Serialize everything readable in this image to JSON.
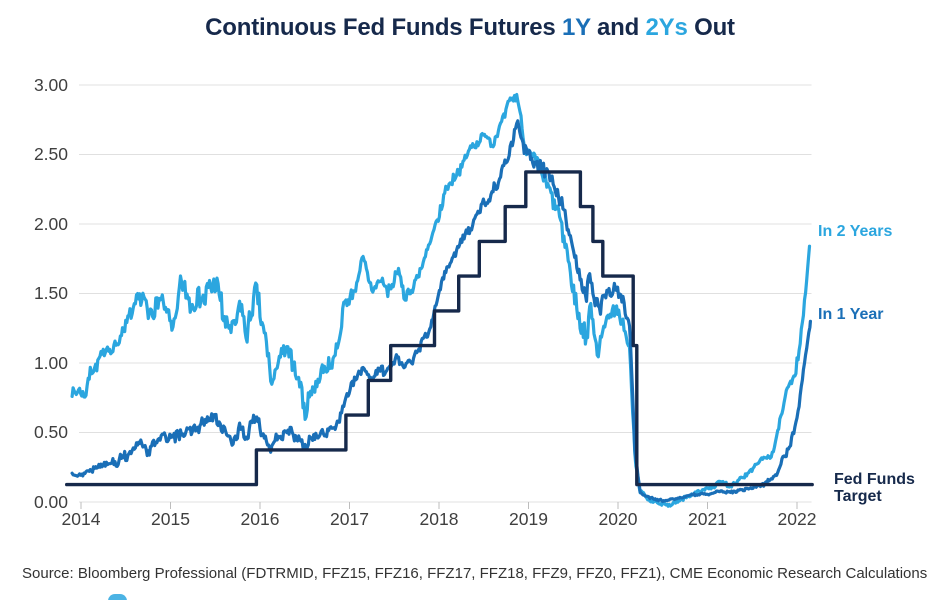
{
  "title": {
    "seg1": "Continuous Fed Funds Futures ",
    "seg2": "1Y",
    "seg3": " and ",
    "seg4": "2Ys",
    "seg5": " Out"
  },
  "labels": {
    "in2y": "In 2 Years",
    "in1y": "In 1 Year",
    "fft_line1": "Fed Funds",
    "fft_line2": "Target"
  },
  "source": "Source: Bloomberg Professional (FDTRMID, FFZ15, FFZ16, FFZ17, FFZ18, FFZ9, FFZ0, FFZ1), CME Economic Research Calculations",
  "colors": {
    "navy": "#16294B",
    "blue_1y": "#1A6FB7",
    "blue_2y": "#2BA6DF",
    "grid": "#E0E0E0",
    "tick": "#BDBDBD",
    "axis_text": "#3F3F3F",
    "source_text": "#333333"
  },
  "chart_data": {
    "type": "line",
    "title": "Continuous Fed Funds Futures 1Y and 2Ys Out",
    "xlabel": "",
    "ylabel": "",
    "grid": "horizontal",
    "legend_position": "right-of-lines",
    "xlim": [
      2013.84,
      2022.2
    ],
    "ylim": [
      0,
      3.0
    ],
    "x_ticks": [
      {
        "v": 2014,
        "label": "2014"
      },
      {
        "v": 2015,
        "label": "2015"
      },
      {
        "v": 2016,
        "label": "2016"
      },
      {
        "v": 2017,
        "label": "2017"
      },
      {
        "v": 2018,
        "label": "2018"
      },
      {
        "v": 2019,
        "label": "2019"
      },
      {
        "v": 2020,
        "label": "2020"
      },
      {
        "v": 2021,
        "label": "2021"
      },
      {
        "v": 2022,
        "label": "2022"
      }
    ],
    "y_ticks": [
      {
        "v": 0.0,
        "label": "0.00"
      },
      {
        "v": 0.5,
        "label": "0.50"
      },
      {
        "v": 1.0,
        "label": "1.00"
      },
      {
        "v": 1.5,
        "label": "1.50"
      },
      {
        "v": 2.0,
        "label": "2.00"
      },
      {
        "v": 2.5,
        "label": "2.50"
      },
      {
        "v": 3.0,
        "label": "3.00"
      }
    ],
    "series": [
      {
        "name": "In 2 Years",
        "color_key": "blue_2y",
        "kind": "noisy-line",
        "points": [
          [
            2013.9,
            0.82
          ],
          [
            2014.0,
            0.8
          ],
          [
            2014.05,
            0.74
          ],
          [
            2014.1,
            0.95
          ],
          [
            2014.2,
            1.02
          ],
          [
            2014.3,
            1.1
          ],
          [
            2014.4,
            1.13
          ],
          [
            2014.5,
            1.25
          ],
          [
            2014.6,
            1.42
          ],
          [
            2014.7,
            1.48
          ],
          [
            2014.75,
            1.32
          ],
          [
            2014.85,
            1.45
          ],
          [
            2014.95,
            1.38
          ],
          [
            2015.05,
            1.3
          ],
          [
            2015.12,
            1.58
          ],
          [
            2015.2,
            1.42
          ],
          [
            2015.3,
            1.52
          ],
          [
            2015.4,
            1.48
          ],
          [
            2015.5,
            1.57
          ],
          [
            2015.6,
            1.32
          ],
          [
            2015.7,
            1.22
          ],
          [
            2015.78,
            1.38
          ],
          [
            2015.85,
            1.18
          ],
          [
            2015.95,
            1.48
          ],
          [
            2016.05,
            1.22
          ],
          [
            2016.12,
            0.88
          ],
          [
            2016.22,
            1.0
          ],
          [
            2016.3,
            1.05
          ],
          [
            2016.4,
            0.92
          ],
          [
            2016.5,
            0.68
          ],
          [
            2016.6,
            0.82
          ],
          [
            2016.7,
            0.92
          ],
          [
            2016.8,
            0.98
          ],
          [
            2016.88,
            1.15
          ],
          [
            2016.95,
            1.42
          ],
          [
            2017.05,
            1.5
          ],
          [
            2017.15,
            1.72
          ],
          [
            2017.25,
            1.52
          ],
          [
            2017.35,
            1.62
          ],
          [
            2017.45,
            1.52
          ],
          [
            2017.55,
            1.65
          ],
          [
            2017.62,
            1.48
          ],
          [
            2017.7,
            1.55
          ],
          [
            2017.8,
            1.7
          ],
          [
            2017.9,
            1.85
          ],
          [
            2018.0,
            2.05
          ],
          [
            2018.1,
            2.28
          ],
          [
            2018.2,
            2.38
          ],
          [
            2018.3,
            2.48
          ],
          [
            2018.4,
            2.58
          ],
          [
            2018.5,
            2.66
          ],
          [
            2018.58,
            2.58
          ],
          [
            2018.7,
            2.72
          ],
          [
            2018.8,
            2.88
          ],
          [
            2018.87,
            2.94
          ],
          [
            2018.95,
            2.6
          ],
          [
            2019.05,
            2.48
          ],
          [
            2019.15,
            2.38
          ],
          [
            2019.25,
            2.2
          ],
          [
            2019.35,
            2.0
          ],
          [
            2019.42,
            1.85
          ],
          [
            2019.5,
            1.48
          ],
          [
            2019.58,
            1.3
          ],
          [
            2019.65,
            1.18
          ],
          [
            2019.7,
            1.42
          ],
          [
            2019.78,
            1.1
          ],
          [
            2019.85,
            1.32
          ],
          [
            2019.95,
            1.35
          ],
          [
            2020.05,
            1.28
          ],
          [
            2020.13,
            1.1
          ],
          [
            2020.19,
            0.3
          ],
          [
            2020.25,
            0.08
          ],
          [
            2020.35,
            0.02
          ],
          [
            2020.45,
            -0.01
          ],
          [
            2020.55,
            -0.02
          ],
          [
            2020.65,
            0.0
          ],
          [
            2020.75,
            0.03
          ],
          [
            2020.85,
            0.06
          ],
          [
            2020.95,
            0.09
          ],
          [
            2021.05,
            0.11
          ],
          [
            2021.15,
            0.14
          ],
          [
            2021.25,
            0.12
          ],
          [
            2021.35,
            0.16
          ],
          [
            2021.45,
            0.2
          ],
          [
            2021.55,
            0.26
          ],
          [
            2021.62,
            0.34
          ],
          [
            2021.7,
            0.3
          ],
          [
            2021.78,
            0.48
          ],
          [
            2021.85,
            0.72
          ],
          [
            2021.9,
            0.85
          ],
          [
            2021.97,
            0.92
          ],
          [
            2022.02,
            1.05
          ],
          [
            2022.07,
            1.35
          ],
          [
            2022.1,
            1.55
          ],
          [
            2022.14,
            1.84
          ]
        ],
        "vol": [
          [
            2013.9,
            0.05
          ],
          [
            2014.5,
            0.07
          ],
          [
            2015.0,
            0.1
          ],
          [
            2015.8,
            0.11
          ],
          [
            2016.3,
            0.09
          ],
          [
            2016.8,
            0.07
          ],
          [
            2017.5,
            0.06
          ],
          [
            2018.3,
            0.045
          ],
          [
            2018.9,
            0.05
          ],
          [
            2019.3,
            0.09
          ],
          [
            2019.8,
            0.11
          ],
          [
            2020.05,
            0.06
          ],
          [
            2020.3,
            0.02
          ],
          [
            2020.7,
            0.012
          ],
          [
            2021.2,
            0.015
          ],
          [
            2021.6,
            0.03
          ],
          [
            2021.9,
            0.045
          ],
          [
            2022.14,
            0.035
          ]
        ]
      },
      {
        "name": "In 1 Year",
        "color_key": "blue_1y",
        "kind": "noisy-line",
        "points": [
          [
            2013.9,
            0.21
          ],
          [
            2014.0,
            0.2
          ],
          [
            2014.1,
            0.24
          ],
          [
            2014.2,
            0.26
          ],
          [
            2014.3,
            0.3
          ],
          [
            2014.4,
            0.29
          ],
          [
            2014.5,
            0.33
          ],
          [
            2014.6,
            0.38
          ],
          [
            2014.7,
            0.43
          ],
          [
            2014.75,
            0.37
          ],
          [
            2014.85,
            0.46
          ],
          [
            2014.95,
            0.48
          ],
          [
            2015.05,
            0.44
          ],
          [
            2015.12,
            0.53
          ],
          [
            2015.2,
            0.5
          ],
          [
            2015.3,
            0.54
          ],
          [
            2015.4,
            0.57
          ],
          [
            2015.5,
            0.6
          ],
          [
            2015.6,
            0.5
          ],
          [
            2015.7,
            0.44
          ],
          [
            2015.78,
            0.52
          ],
          [
            2015.85,
            0.46
          ],
          [
            2015.95,
            0.6
          ],
          [
            2016.05,
            0.5
          ],
          [
            2016.12,
            0.4
          ],
          [
            2016.22,
            0.47
          ],
          [
            2016.3,
            0.5
          ],
          [
            2016.4,
            0.46
          ],
          [
            2016.5,
            0.4
          ],
          [
            2016.6,
            0.48
          ],
          [
            2016.7,
            0.5
          ],
          [
            2016.8,
            0.53
          ],
          [
            2016.88,
            0.6
          ],
          [
            2016.95,
            0.75
          ],
          [
            2017.05,
            0.85
          ],
          [
            2017.15,
            0.97
          ],
          [
            2017.25,
            0.9
          ],
          [
            2017.35,
            0.95
          ],
          [
            2017.45,
            0.97
          ],
          [
            2017.55,
            1.04
          ],
          [
            2017.62,
            0.98
          ],
          [
            2017.7,
            1.03
          ],
          [
            2017.8,
            1.12
          ],
          [
            2017.9,
            1.25
          ],
          [
            2018.0,
            1.52
          ],
          [
            2018.1,
            1.72
          ],
          [
            2018.2,
            1.82
          ],
          [
            2018.3,
            1.92
          ],
          [
            2018.4,
            2.02
          ],
          [
            2018.5,
            2.15
          ],
          [
            2018.58,
            2.2
          ],
          [
            2018.7,
            2.38
          ],
          [
            2018.8,
            2.55
          ],
          [
            2018.87,
            2.76
          ],
          [
            2018.95,
            2.52
          ],
          [
            2019.05,
            2.45
          ],
          [
            2019.15,
            2.4
          ],
          [
            2019.25,
            2.32
          ],
          [
            2019.35,
            2.2
          ],
          [
            2019.42,
            2.05
          ],
          [
            2019.5,
            1.8
          ],
          [
            2019.58,
            1.6
          ],
          [
            2019.65,
            1.5
          ],
          [
            2019.7,
            1.6
          ],
          [
            2019.78,
            1.4
          ],
          [
            2019.85,
            1.5
          ],
          [
            2019.95,
            1.52
          ],
          [
            2020.05,
            1.45
          ],
          [
            2020.13,
            1.28
          ],
          [
            2020.19,
            0.35
          ],
          [
            2020.25,
            0.06
          ],
          [
            2020.35,
            0.03
          ],
          [
            2020.45,
            0.01
          ],
          [
            2020.55,
            0.01
          ],
          [
            2020.65,
            0.02
          ],
          [
            2020.75,
            0.04
          ],
          [
            2020.85,
            0.05
          ],
          [
            2020.95,
            0.06
          ],
          [
            2021.05,
            0.06
          ],
          [
            2021.15,
            0.08
          ],
          [
            2021.25,
            0.07
          ],
          [
            2021.35,
            0.08
          ],
          [
            2021.45,
            0.09
          ],
          [
            2021.55,
            0.11
          ],
          [
            2021.62,
            0.13
          ],
          [
            2021.7,
            0.15
          ],
          [
            2021.78,
            0.22
          ],
          [
            2021.85,
            0.3
          ],
          [
            2021.9,
            0.38
          ],
          [
            2021.97,
            0.5
          ],
          [
            2022.02,
            0.68
          ],
          [
            2022.07,
            0.92
          ],
          [
            2022.1,
            1.08
          ],
          [
            2022.15,
            1.3
          ]
        ],
        "vol": [
          [
            2013.9,
            0.025
          ],
          [
            2014.5,
            0.04
          ],
          [
            2015.0,
            0.05
          ],
          [
            2016.0,
            0.05
          ],
          [
            2017.0,
            0.04
          ],
          [
            2018.0,
            0.035
          ],
          [
            2018.9,
            0.045
          ],
          [
            2019.3,
            0.07
          ],
          [
            2019.8,
            0.09
          ],
          [
            2020.05,
            0.05
          ],
          [
            2020.3,
            0.008
          ],
          [
            2021.0,
            0.008
          ],
          [
            2021.5,
            0.015
          ],
          [
            2021.9,
            0.03
          ],
          [
            2022.15,
            0.03
          ]
        ]
      },
      {
        "name": "Fed Funds Target",
        "color_key": "navy",
        "kind": "step",
        "points": [
          [
            2013.84,
            0.125
          ],
          [
            2015.96,
            0.375
          ],
          [
            2016.96,
            0.625
          ],
          [
            2017.21,
            0.875
          ],
          [
            2017.46,
            1.125
          ],
          [
            2017.95,
            1.375
          ],
          [
            2018.22,
            1.625
          ],
          [
            2018.45,
            1.875
          ],
          [
            2018.74,
            2.125
          ],
          [
            2018.97,
            2.375
          ],
          [
            2019.58,
            2.125
          ],
          [
            2019.72,
            1.875
          ],
          [
            2019.83,
            1.625
          ],
          [
            2020.17,
            1.125
          ],
          [
            2020.21,
            0.125
          ]
        ],
        "end": 2022.17
      }
    ]
  }
}
